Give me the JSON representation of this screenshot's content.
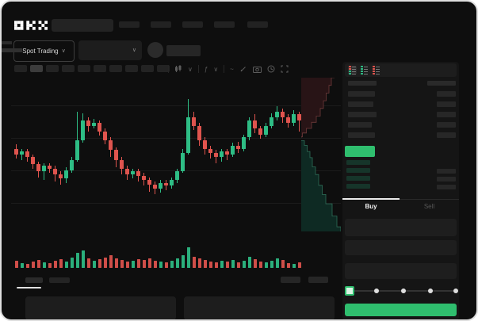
{
  "app": {
    "logo_text": "OKX"
  },
  "market_bar": {
    "market_selector": "Spot Trading"
  },
  "icons": {
    "chevron_down": "∨",
    "wave": "~",
    "function": "ƒ"
  },
  "trade_panel": {
    "buy_label": "Buy",
    "sell_label": "Sell"
  },
  "colors": {
    "up_green": "#2EBD85",
    "down_red": "#DF544E",
    "accent_green": "#2FBE6E",
    "depth_ask_fill": "#281416",
    "depth_ask_line": "#6E3A3A",
    "depth_bid_fill": "#0E2A23",
    "depth_bid_line": "#2F6E58"
  },
  "chart_data": {
    "type": "candlestick",
    "x_count": 52,
    "price_scale": {
      "min": 0,
      "max": 100
    },
    "candles": [
      [
        58,
        61,
        51,
        54
      ],
      [
        54,
        58,
        50,
        56
      ],
      [
        56,
        58,
        49,
        52
      ],
      [
        52,
        54,
        44,
        47
      ],
      [
        47,
        49,
        38,
        42
      ],
      [
        42,
        48,
        36,
        46
      ],
      [
        46,
        48,
        41,
        44
      ],
      [
        44,
        46,
        35,
        40
      ],
      [
        40,
        42,
        33,
        37
      ],
      [
        37,
        45,
        34,
        43
      ],
      [
        43,
        52,
        41,
        50
      ],
      [
        50,
        84,
        49,
        64
      ],
      [
        64,
        83,
        62,
        78
      ],
      [
        78,
        80,
        70,
        74
      ],
      [
        74,
        79,
        72,
        76
      ],
      [
        76,
        78,
        67,
        70
      ],
      [
        70,
        72,
        61,
        64
      ],
      [
        64,
        66,
        52,
        57
      ],
      [
        57,
        59,
        45,
        50
      ],
      [
        50,
        52,
        40,
        44
      ],
      [
        44,
        46,
        36,
        40
      ],
      [
        40,
        44,
        37,
        42
      ],
      [
        42,
        44,
        35,
        39
      ],
      [
        39,
        41,
        32,
        36
      ],
      [
        36,
        38,
        28,
        33
      ],
      [
        33,
        35,
        26,
        30
      ],
      [
        30,
        36,
        27,
        34
      ],
      [
        34,
        36,
        29,
        32
      ],
      [
        32,
        38,
        30,
        36
      ],
      [
        36,
        44,
        34,
        42
      ],
      [
        42,
        58,
        41,
        55
      ],
      [
        55,
        93,
        54,
        80
      ],
      [
        80,
        84,
        71,
        74
      ],
      [
        74,
        76,
        60,
        64
      ],
      [
        64,
        66,
        54,
        58
      ],
      [
        58,
        60,
        51,
        55
      ],
      [
        55,
        57,
        48,
        52
      ],
      [
        52,
        58,
        49,
        56
      ],
      [
        56,
        58,
        50,
        54
      ],
      [
        54,
        62,
        52,
        60
      ],
      [
        60,
        63,
        55,
        58
      ],
      [
        58,
        68,
        56,
        66
      ],
      [
        66,
        80,
        64,
        78
      ],
      [
        78,
        82,
        69,
        72
      ],
      [
        72,
        74,
        65,
        68
      ],
      [
        68,
        76,
        66,
        74
      ],
      [
        74,
        83,
        72,
        80
      ],
      [
        80,
        88,
        78,
        84
      ],
      [
        84,
        86,
        76,
        80
      ],
      [
        80,
        82,
        73,
        76
      ],
      [
        76,
        85,
        74,
        82
      ],
      [
        82,
        84,
        70,
        78
      ]
    ],
    "volumes": [
      9,
      6,
      5,
      8,
      10,
      7,
      6,
      9,
      11,
      8,
      13,
      19,
      22,
      12,
      9,
      11,
      13,
      16,
      12,
      10,
      8,
      9,
      11,
      10,
      12,
      9,
      8,
      7,
      9,
      12,
      16,
      26,
      14,
      12,
      10,
      8,
      7,
      9,
      8,
      10,
      7,
      9,
      14,
      11,
      8,
      7,
      9,
      12,
      10,
      6,
      5,
      7
    ],
    "depth": {
      "asks": [
        [
          0.84,
          0
        ],
        [
          0.76,
          0.05
        ],
        [
          0.7,
          0.1
        ],
        [
          0.63,
          0.15
        ],
        [
          0.56,
          0.2
        ],
        [
          0.48,
          0.25
        ],
        [
          0.38,
          0.29
        ],
        [
          0.26,
          0.33
        ],
        [
          0.13,
          0.36
        ],
        [
          0.03,
          0.385
        ],
        [
          0,
          0.39
        ]
      ],
      "bids": [
        [
          0,
          0.41
        ],
        [
          0.08,
          0.44
        ],
        [
          0.15,
          0.48
        ],
        [
          0.22,
          0.52
        ],
        [
          0.28,
          0.58
        ],
        [
          0.36,
          0.63
        ],
        [
          0.44,
          0.7
        ],
        [
          0.53,
          0.76
        ],
        [
          0.62,
          0.82
        ],
        [
          0.78,
          0.9
        ],
        [
          0.9,
          0.97
        ],
        [
          1,
          1
        ]
      ]
    }
  }
}
